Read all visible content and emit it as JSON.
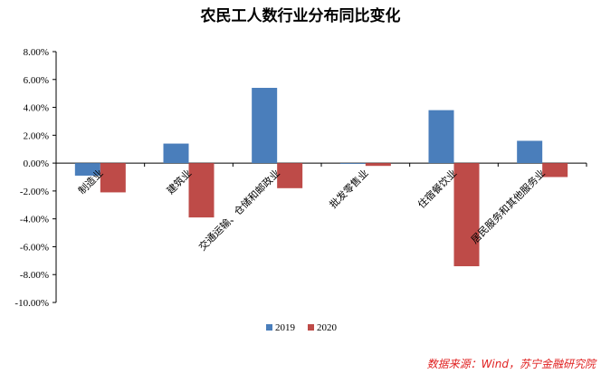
{
  "chart_data": {
    "type": "bar",
    "title": "农民工人数行业分布同比变化",
    "categories": [
      "制造业",
      "建筑业",
      "交通运输、仓储和邮政业",
      "批发零售业",
      "住宿餐饮业",
      "居民服务和其他服务业"
    ],
    "series": [
      {
        "name": "2019",
        "color": "#4a7ebb",
        "values": [
          -0.9,
          1.4,
          5.4,
          0.0,
          3.8,
          1.6
        ]
      },
      {
        "name": "2020",
        "color": "#be4b48",
        "values": [
          -2.1,
          -3.9,
          -1.8,
          -0.2,
          -7.4,
          -1.0
        ]
      }
    ],
    "yticks": [
      "8.00%",
      "6.00%",
      "4.00%",
      "2.00%",
      "0.00%",
      "-2.00%",
      "-4.00%",
      "-6.00%",
      "-8.00%",
      "-10.00%"
    ],
    "ylim": [
      -10,
      8
    ],
    "yunit": "%",
    "legend_position": "bottom",
    "grid": false,
    "source": "数据来源：Wind，苏宁金融研究院"
  }
}
